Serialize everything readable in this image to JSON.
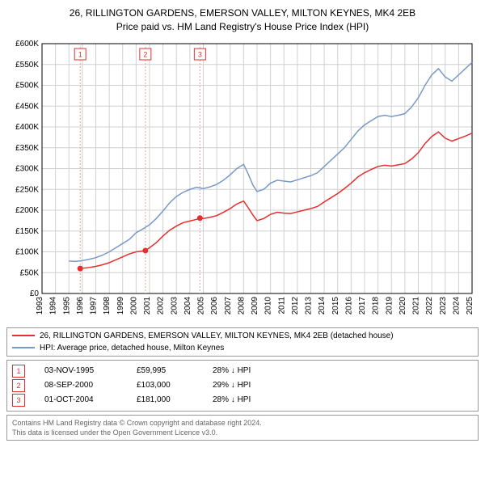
{
  "title_line1": "26, RILLINGTON GARDENS, EMERSON VALLEY, MILTON KEYNES, MK4 2EB",
  "title_line2": "Price paid vs. HM Land Registry's House Price Index (HPI)",
  "chart": {
    "type": "line",
    "background_color": "#ffffff",
    "grid_color": "#d0d0d0",
    "axis_color": "#000000",
    "label_fontsize": 10,
    "x_years": [
      1993,
      1994,
      1995,
      1996,
      1997,
      1998,
      1999,
      2000,
      2001,
      2002,
      2003,
      2004,
      2005,
      2006,
      2007,
      2008,
      2009,
      2010,
      2011,
      2012,
      2013,
      2014,
      2015,
      2016,
      2017,
      2018,
      2019,
      2020,
      2021,
      2022,
      2023,
      2024,
      2025
    ],
    "ylim": [
      0,
      600000
    ],
    "ytick_step": 50000,
    "ytick_labels": [
      "£0",
      "£50K",
      "£100K",
      "£150K",
      "£200K",
      "£250K",
      "£300K",
      "£350K",
      "£400K",
      "£450K",
      "£500K",
      "£550K",
      "£600K"
    ],
    "series": [
      {
        "name": "HPI: Average price, detached house, Milton Keynes",
        "color": "#7899c8",
        "line_width": 1.5,
        "points": [
          [
            1995.0,
            78000
          ],
          [
            1995.5,
            77000
          ],
          [
            1996.0,
            79000
          ],
          [
            1996.5,
            82000
          ],
          [
            1997.0,
            86000
          ],
          [
            1997.5,
            92000
          ],
          [
            1998.0,
            100000
          ],
          [
            1998.5,
            110000
          ],
          [
            1999.0,
            120000
          ],
          [
            1999.5,
            130000
          ],
          [
            2000.0,
            146000
          ],
          [
            2000.5,
            155000
          ],
          [
            2001.0,
            165000
          ],
          [
            2001.5,
            180000
          ],
          [
            2002.0,
            198000
          ],
          [
            2002.5,
            218000
          ],
          [
            2003.0,
            233000
          ],
          [
            2003.5,
            243000
          ],
          [
            2004.0,
            250000
          ],
          [
            2004.5,
            255000
          ],
          [
            2005.0,
            252000
          ],
          [
            2005.5,
            256000
          ],
          [
            2006.0,
            262000
          ],
          [
            2006.5,
            272000
          ],
          [
            2007.0,
            285000
          ],
          [
            2007.5,
            300000
          ],
          [
            2008.0,
            310000
          ],
          [
            2008.3,
            290000
          ],
          [
            2008.7,
            260000
          ],
          [
            2009.0,
            245000
          ],
          [
            2009.5,
            250000
          ],
          [
            2010.0,
            265000
          ],
          [
            2010.5,
            272000
          ],
          [
            2011.0,
            270000
          ],
          [
            2011.5,
            268000
          ],
          [
            2012.0,
            273000
          ],
          [
            2012.5,
            278000
          ],
          [
            2013.0,
            283000
          ],
          [
            2013.5,
            290000
          ],
          [
            2014.0,
            305000
          ],
          [
            2014.5,
            320000
          ],
          [
            2015.0,
            335000
          ],
          [
            2015.5,
            350000
          ],
          [
            2016.0,
            370000
          ],
          [
            2016.5,
            390000
          ],
          [
            2017.0,
            405000
          ],
          [
            2017.5,
            415000
          ],
          [
            2018.0,
            425000
          ],
          [
            2018.5,
            428000
          ],
          [
            2019.0,
            425000
          ],
          [
            2019.5,
            428000
          ],
          [
            2020.0,
            432000
          ],
          [
            2020.5,
            448000
          ],
          [
            2021.0,
            470000
          ],
          [
            2021.5,
            500000
          ],
          [
            2022.0,
            525000
          ],
          [
            2022.5,
            540000
          ],
          [
            2023.0,
            520000
          ],
          [
            2023.5,
            510000
          ],
          [
            2024.0,
            525000
          ],
          [
            2024.5,
            540000
          ],
          [
            2025.0,
            555000
          ]
        ]
      },
      {
        "name": "26, RILLINGTON GARDENS, EMERSON VALLEY, MILTON KEYNES, MK4 2EB (detached house)",
        "color": "#e62e2e",
        "line_width": 1.5,
        "points": [
          [
            1995.84,
            59995
          ],
          [
            1996.0,
            60500
          ],
          [
            1996.5,
            62500
          ],
          [
            1997.0,
            65000
          ],
          [
            1997.5,
            69000
          ],
          [
            1998.0,
            74000
          ],
          [
            1998.5,
            81000
          ],
          [
            1999.0,
            88000
          ],
          [
            1999.5,
            95000
          ],
          [
            2000.0,
            100000
          ],
          [
            2000.69,
            103000
          ],
          [
            2001.0,
            110000
          ],
          [
            2001.5,
            122000
          ],
          [
            2002.0,
            138000
          ],
          [
            2002.5,
            152000
          ],
          [
            2003.0,
            162000
          ],
          [
            2003.5,
            170000
          ],
          [
            2004.0,
            174000
          ],
          [
            2004.5,
            178000
          ],
          [
            2004.75,
            181000
          ],
          [
            2005.0,
            180000
          ],
          [
            2005.5,
            183000
          ],
          [
            2006.0,
            187000
          ],
          [
            2006.5,
            195000
          ],
          [
            2007.0,
            204000
          ],
          [
            2007.5,
            215000
          ],
          [
            2008.0,
            222000
          ],
          [
            2008.3,
            208000
          ],
          [
            2008.7,
            188000
          ],
          [
            2009.0,
            175000
          ],
          [
            2009.5,
            180000
          ],
          [
            2010.0,
            190000
          ],
          [
            2010.5,
            195000
          ],
          [
            2011.0,
            193000
          ],
          [
            2011.5,
            192000
          ],
          [
            2012.0,
            196000
          ],
          [
            2012.5,
            200000
          ],
          [
            2013.0,
            204000
          ],
          [
            2013.5,
            209000
          ],
          [
            2014.0,
            220000
          ],
          [
            2014.5,
            230000
          ],
          [
            2015.0,
            240000
          ],
          [
            2015.5,
            252000
          ],
          [
            2016.0,
            265000
          ],
          [
            2016.5,
            280000
          ],
          [
            2017.0,
            290000
          ],
          [
            2017.5,
            298000
          ],
          [
            2018.0,
            305000
          ],
          [
            2018.5,
            308000
          ],
          [
            2019.0,
            306000
          ],
          [
            2019.5,
            309000
          ],
          [
            2020.0,
            312000
          ],
          [
            2020.5,
            323000
          ],
          [
            2021.0,
            338000
          ],
          [
            2021.5,
            360000
          ],
          [
            2022.0,
            377000
          ],
          [
            2022.5,
            388000
          ],
          [
            2023.0,
            373000
          ],
          [
            2023.5,
            366000
          ],
          [
            2024.0,
            372000
          ],
          [
            2024.5,
            378000
          ],
          [
            2025.0,
            385000
          ]
        ]
      }
    ],
    "price_markers": [
      {
        "label": "1",
        "year": 1995.84,
        "value": 59995,
        "color": "#e62e2e",
        "dash_color": "#f0a0a0"
      },
      {
        "label": "2",
        "year": 2000.69,
        "value": 103000,
        "color": "#e62e2e",
        "dash_color": "#f0a0a0"
      },
      {
        "label": "3",
        "year": 2004.75,
        "value": 181000,
        "color": "#e62e2e",
        "dash_color": "#f0a0a0"
      }
    ]
  },
  "legend": {
    "items": [
      {
        "color": "#e62e2e",
        "label": "26, RILLINGTON GARDENS, EMERSON VALLEY, MILTON KEYNES, MK4 2EB (detached house)"
      },
      {
        "color": "#7899c8",
        "label": "HPI: Average price, detached house, Milton Keynes"
      }
    ]
  },
  "marker_table": {
    "rows": [
      {
        "num": "1",
        "date": "03-NOV-1995",
        "price": "£59,995",
        "diff": "28% ↓ HPI",
        "color": "#e62e2e"
      },
      {
        "num": "2",
        "date": "08-SEP-2000",
        "price": "£103,000",
        "diff": "29% ↓ HPI",
        "color": "#e62e2e"
      },
      {
        "num": "3",
        "date": "01-OCT-2004",
        "price": "£181,000",
        "diff": "28% ↓ HPI",
        "color": "#e62e2e"
      }
    ]
  },
  "footnote_line1": "Contains HM Land Registry data © Crown copyright and database right 2024.",
  "footnote_line2": "This data is licensed under the Open Government Licence v3.0."
}
